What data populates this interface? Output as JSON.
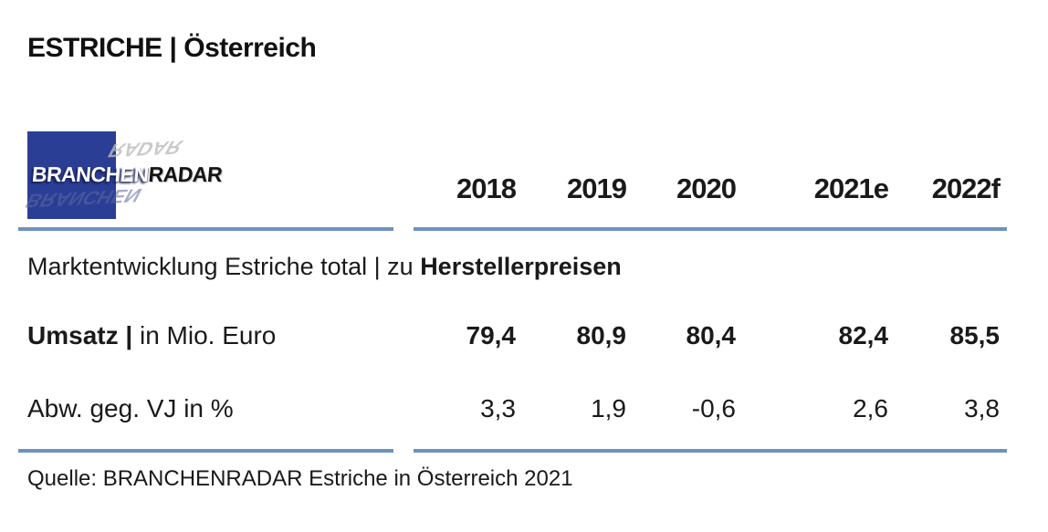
{
  "page": {
    "title": "ESTRICHE | Österreich",
    "source": "Quelle: BRANCHENRADAR Estriche in Österreich 2021"
  },
  "logo": {
    "part1": "BRANCHEN",
    "part2": "RADAR",
    "square_color": "#2b3e96"
  },
  "colors": {
    "rule_blue": "#6e92bd",
    "logo_blue": "#2b3e96",
    "text": "#1a1a1a"
  },
  "table": {
    "columns": [
      "2018",
      "2019",
      "2020",
      "2021e",
      "2022f"
    ],
    "section_label_regular": "Marktentwicklung Estriche total | zu ",
    "section_label_bold": "Herstellerpreisen",
    "rows": [
      {
        "label_bold": "Umsatz |",
        "label_regular": " in Mio. Euro",
        "values": [
          "79,4",
          "80,9",
          "80,4",
          "82,4",
          "85,5"
        ]
      },
      {
        "label_bold": "",
        "label_regular": "Abw. geg. VJ in %",
        "values": [
          "3,3",
          "1,9",
          "-0,6",
          "2,6",
          "3,8"
        ]
      }
    ]
  },
  "chart_data": {
    "type": "table",
    "title": "ESTRICHE | Österreich",
    "subtitle": "Marktentwicklung Estriche total | zu Herstellerpreisen",
    "categories": [
      "2018",
      "2019",
      "2020",
      "2021e",
      "2022f"
    ],
    "series": [
      {
        "name": "Umsatz | in Mio. Euro",
        "values": [
          79.4,
          80.9,
          80.4,
          82.4,
          85.5
        ]
      },
      {
        "name": "Abw. geg. VJ in %",
        "values": [
          3.3,
          1.9,
          -0.6,
          2.6,
          3.8
        ]
      }
    ],
    "source": "Quelle: BRANCHENRADAR Estriche in Österreich 2021"
  }
}
